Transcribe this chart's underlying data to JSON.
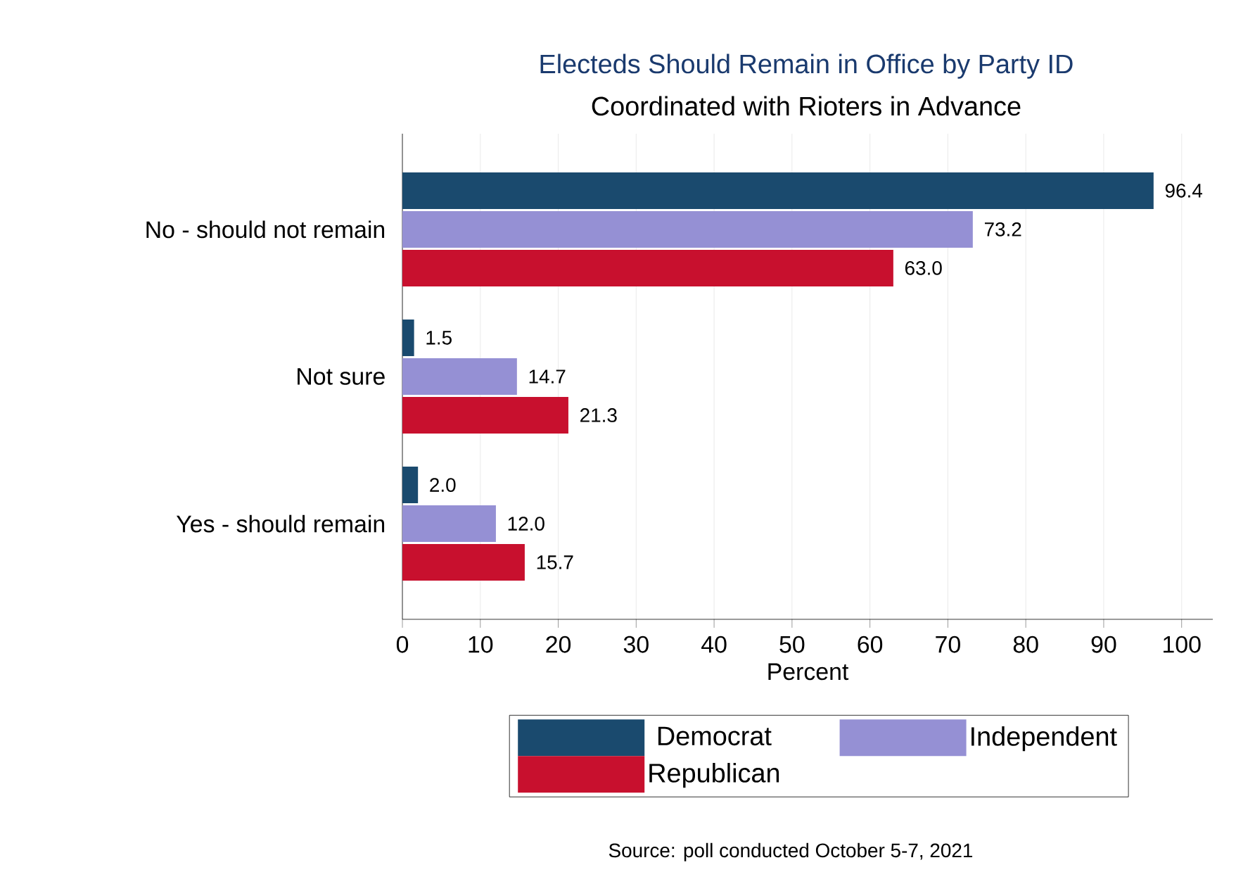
{
  "chart_data": {
    "type": "bar",
    "orientation": "horizontal",
    "title": "Electeds Should Remain in Office by Party ID",
    "subtitle": "Coordinated with Rioters in Advance",
    "xlabel": "Percent",
    "categories": [
      "No - should not remain",
      "Not sure",
      "Yes - should remain"
    ],
    "series": [
      {
        "name": "Democrat",
        "color": "#1a4a6e",
        "values": [
          96.4,
          1.5,
          2.0
        ],
        "value_labels": [
          "96.4",
          "1.5",
          "2.0"
        ]
      },
      {
        "name": "Independent",
        "color": "#9590d4",
        "values": [
          73.2,
          14.7,
          12.0
        ],
        "value_labels": [
          "73.2",
          "14.7",
          "12.0"
        ]
      },
      {
        "name": "Republican",
        "color": "#c8102e",
        "values": [
          63.0,
          21.3,
          15.7
        ],
        "value_labels": [
          "63.0",
          "21.3",
          "15.7"
        ]
      }
    ],
    "xlim": [
      0,
      104
    ],
    "xticks": [
      0,
      10,
      20,
      30,
      40,
      50,
      60,
      70,
      80,
      90,
      100
    ],
    "grid": "x",
    "legend": "bottom",
    "annotations": [
      "Source: poll conducted October 5-7, 2021"
    ]
  }
}
